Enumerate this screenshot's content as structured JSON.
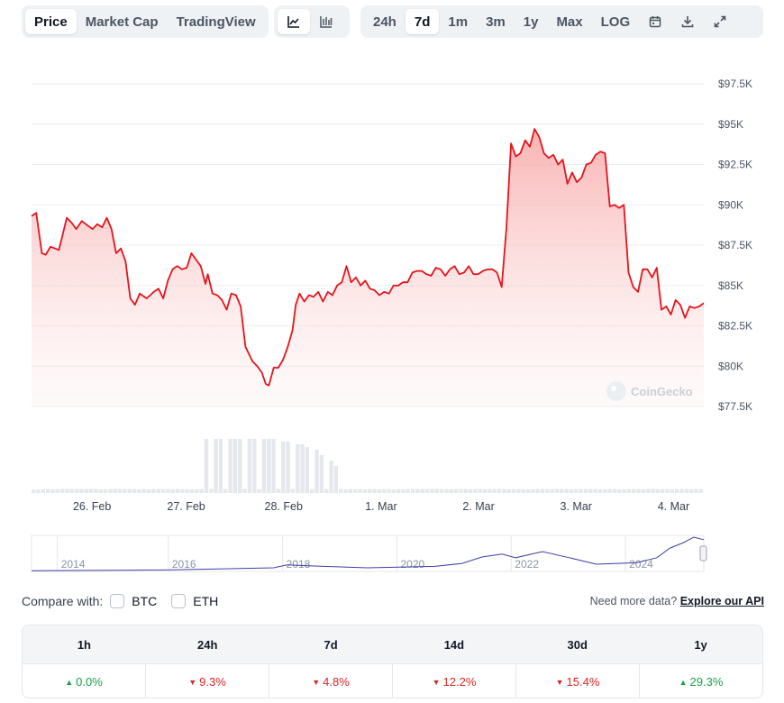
{
  "tabs_view": [
    {
      "label": "Price",
      "active": true
    },
    {
      "label": "Market Cap",
      "active": false
    },
    {
      "label": "TradingView",
      "active": false
    }
  ],
  "chart_style_icons": [
    "line-chart-icon",
    "candlestick-chart-icon"
  ],
  "tabs_range": [
    {
      "label": "24h",
      "active": false
    },
    {
      "label": "7d",
      "active": true
    },
    {
      "label": "1m",
      "active": false
    },
    {
      "label": "3m",
      "active": false
    },
    {
      "label": "1y",
      "active": false
    },
    {
      "label": "Max",
      "active": false
    },
    {
      "label": "LOG",
      "active": false
    }
  ],
  "tool_icons": [
    "calendar-icon",
    "download-icon",
    "expand-icon"
  ],
  "watermark": "CoinGecko",
  "colors": {
    "line": "#e5141c",
    "fill": "#f8b4b4",
    "volume": "#e4e7eb",
    "nav_line": "#3b3fa6",
    "up": "#16a34a",
    "down": "#dc2626"
  },
  "chart_data": {
    "type": "line",
    "y_ticks": [
      "$97.5K",
      "$95K",
      "$92.5K",
      "$90K",
      "$87.5K",
      "$85K",
      "$82.5K",
      "$80K",
      "$77.5K"
    ],
    "y_tick_values": [
      97500,
      95000,
      92500,
      90000,
      87500,
      85000,
      82500,
      80000,
      77500
    ],
    "ylim": [
      77500,
      97500
    ],
    "x_ticks": [
      "26. Feb",
      "27. Feb",
      "28. Feb",
      "1. Mar",
      "2. Mar",
      "3. Mar",
      "4. Mar"
    ],
    "x_tick_positions": [
      0.09,
      0.23,
      0.375,
      0.52,
      0.665,
      0.81,
      0.955
    ],
    "price": [
      [
        0,
        89300
      ],
      [
        0.01,
        89500
      ],
      [
        0.022,
        87000
      ],
      [
        0.03,
        86900
      ],
      [
        0.04,
        87400
      ],
      [
        0.05,
        87300
      ],
      [
        0.058,
        87200
      ],
      [
        0.065,
        88000
      ],
      [
        0.075,
        89200
      ],
      [
        0.085,
        88900
      ],
      [
        0.095,
        88500
      ],
      [
        0.107,
        89000
      ],
      [
        0.12,
        88700
      ],
      [
        0.13,
        88500
      ],
      [
        0.14,
        88800
      ],
      [
        0.15,
        88600
      ],
      [
        0.16,
        89200
      ],
      [
        0.17,
        88500
      ],
      [
        0.18,
        87000
      ],
      [
        0.19,
        87300
      ],
      [
        0.2,
        86500
      ],
      [
        0.21,
        84200
      ],
      [
        0.22,
        83800
      ],
      [
        0.23,
        84500
      ],
      [
        0.245,
        84200
      ],
      [
        0.26,
        84600
      ],
      [
        0.27,
        84800
      ],
      [
        0.28,
        84200
      ],
      [
        0.29,
        85300
      ],
      [
        0.3,
        86000
      ],
      [
        0.31,
        86200
      ],
      [
        0.32,
        86000
      ],
      [
        0.33,
        86100
      ],
      [
        0.34,
        87000
      ],
      [
        0.35,
        86600
      ],
      [
        0.36,
        86200
      ],
      [
        0.37,
        85100
      ],
      [
        0.375,
        85700
      ],
      [
        0.385,
        84500
      ],
      [
        0.395,
        84400
      ],
      [
        0.405,
        84100
      ],
      [
        0.415,
        83500
      ],
      [
        0.425,
        84500
      ],
      [
        0.435,
        84400
      ],
      [
        0.445,
        83700
      ],
      [
        0.455,
        81200
      ],
      [
        0.47,
        80300
      ],
      [
        0.48,
        80000
      ],
      [
        0.49,
        79600
      ],
      [
        0.498,
        78900
      ],
      [
        0.505,
        78800
      ],
      [
        0.515,
        79900
      ],
      [
        0.525,
        79900
      ],
      [
        0.535,
        80400
      ],
      [
        0.545,
        81200
      ],
      [
        0.555,
        82200
      ],
      [
        0.562,
        83800
      ],
      [
        0.57,
        84500
      ],
      [
        0.58,
        84000
      ],
      [
        0.59,
        84400
      ],
      [
        0.6,
        84300
      ],
      [
        0.61,
        84600
      ],
      [
        0.62,
        84000
      ],
      [
        0.63,
        84600
      ],
      [
        0.64,
        84400
      ],
      [
        0.65,
        85000
      ],
      [
        0.66,
        85200
      ],
      [
        0.67,
        86200
      ],
      [
        0.68,
        85200
      ],
      [
        0.69,
        85500
      ],
      [
        0.7,
        85000
      ],
      [
        0.71,
        85300
      ],
      [
        0.72,
        84800
      ],
      [
        0.73,
        84700
      ],
      [
        0.74,
        84400
      ],
      [
        0.75,
        84600
      ],
      [
        0.76,
        84500
      ],
      [
        0.77,
        85000
      ],
      [
        0.78,
        85000
      ],
      [
        0.79,
        85200
      ],
      [
        0.8,
        85200
      ],
      [
        0.81,
        85800
      ],
      [
        0.82,
        85900
      ],
      [
        0.83,
        85900
      ],
      [
        0.84,
        85700
      ],
      [
        0.85,
        85600
      ],
      [
        0.86,
        86100
      ],
      [
        0.87,
        86000
      ],
      [
        0.88,
        85600
      ],
      [
        0.89,
        86000
      ],
      [
        0.9,
        86200
      ],
      [
        0.91,
        85700
      ],
      [
        0.92,
        85800
      ],
      [
        0.93,
        86200
      ],
      [
        0.94,
        85700
      ],
      [
        0.95,
        85700
      ],
      [
        0.96,
        85900
      ],
      [
        0.97,
        86000
      ],
      [
        0.98,
        86000
      ],
      [
        0.99,
        85800
      ],
      [
        1.0,
        84900
      ],
      [
        1.01,
        88500
      ],
      [
        1.02,
        93800
      ],
      [
        1.03,
        93000
      ],
      [
        1.04,
        93200
      ],
      [
        1.05,
        94000
      ],
      [
        1.06,
        93600
      ],
      [
        1.07,
        94700
      ],
      [
        1.08,
        94200
      ],
      [
        1.09,
        93200
      ],
      [
        1.1,
        92900
      ],
      [
        1.11,
        93100
      ],
      [
        1.12,
        92500
      ],
      [
        1.13,
        92800
      ],
      [
        1.14,
        91300
      ],
      [
        1.15,
        92000
      ],
      [
        1.16,
        91400
      ],
      [
        1.17,
        91700
      ],
      [
        1.18,
        92500
      ],
      [
        1.19,
        92600
      ],
      [
        1.2,
        93100
      ],
      [
        1.21,
        93300
      ],
      [
        1.22,
        93200
      ],
      [
        1.23,
        89900
      ],
      [
        1.24,
        90000
      ],
      [
        1.25,
        89800
      ],
      [
        1.26,
        90000
      ],
      [
        1.27,
        85800
      ],
      [
        1.28,
        84900
      ],
      [
        1.29,
        84600
      ],
      [
        1.3,
        86000
      ],
      [
        1.31,
        86000
      ],
      [
        1.32,
        85500
      ],
      [
        1.33,
        86100
      ],
      [
        1.34,
        83500
      ],
      [
        1.35,
        83700
      ],
      [
        1.36,
        83200
      ],
      [
        1.37,
        84100
      ],
      [
        1.38,
        83800
      ],
      [
        1.39,
        83000
      ],
      [
        1.4,
        83700
      ],
      [
        1.41,
        83600
      ],
      [
        1.42,
        83700
      ],
      [
        1.43,
        83900
      ]
    ],
    "volume_levels": [
      0.25,
      0.25,
      0.28,
      0.3,
      0.28,
      0.28,
      0.3,
      0.3,
      0.29,
      0.3,
      0.29,
      0.3,
      0.3,
      0.3,
      0.28,
      0.28,
      0.3,
      0.3,
      0.29,
      0.3,
      0.3,
      0.29,
      0.28,
      0.3,
      0.28,
      0.3,
      0.3,
      0.29,
      0.29,
      0.28,
      0.3,
      0.28,
      0.27,
      0.28,
      0.28,
      0.3,
      0.28,
      0.29,
      0.27,
      0.3,
      0.29,
      0.29,
      0.28,
      0.28,
      0.3,
      0.28,
      0.28,
      0.27,
      0.29,
      0.29,
      0.28,
      0.3,
      0.29,
      0.3,
      0.29,
      0.28,
      0.3,
      0.29,
      0.28,
      0.3,
      0.28,
      0.3,
      0.29,
      0.3,
      0.29,
      0.28,
      0.3,
      0.29,
      0.3,
      0.28,
      0.3,
      0.3,
      0.28,
      0.29,
      0.29,
      0.28,
      0.3,
      0.28,
      0.3,
      0.3,
      0.3,
      0.3,
      0.29,
      0.3,
      0.3,
      0.29,
      0.28,
      0.3,
      0.3,
      0.3,
      0.3,
      0.28,
      0.29,
      0.3,
      0.28,
      0.28,
      0.29,
      0.3,
      0.3,
      0.28,
      0.27,
      0.27,
      0.28,
      0.28,
      0.29,
      0.3,
      0.3,
      0.3,
      0.29,
      0.3,
      0.3,
      0.3,
      0.28,
      0.3,
      0.3,
      0.29,
      0.3,
      0.29,
      0.28,
      0.27,
      0.29,
      0.28,
      0.27,
      0.28,
      0.29,
      0.3,
      0.3,
      0.28,
      0.3,
      0.3,
      0.29,
      0.28,
      0.3,
      0.28,
      0.3,
      0.3,
      0.29,
      0.27,
      0.3,
      0.3
    ],
    "volume_spikes": [
      [
        0.26,
        1.0
      ],
      [
        0.27,
        1.0
      ],
      [
        0.28,
        1.0
      ],
      [
        0.29,
        1.0
      ],
      [
        0.3,
        1.0
      ],
      [
        0.31,
        1.0
      ],
      [
        0.32,
        1.0
      ],
      [
        0.33,
        1.0
      ],
      [
        0.34,
        1.0
      ],
      [
        0.35,
        1.0
      ],
      [
        0.36,
        1.0
      ],
      [
        0.37,
        0.95
      ],
      [
        0.38,
        0.95
      ],
      [
        0.39,
        0.9
      ],
      [
        0.4,
        0.9
      ],
      [
        0.41,
        0.85
      ],
      [
        0.42,
        0.8
      ],
      [
        0.43,
        0.7
      ],
      [
        0.44,
        0.6
      ],
      [
        0.45,
        0.5
      ]
    ],
    "navigator": {
      "x_ticks": [
        "2014",
        "2016",
        "2018",
        "2020",
        "2022",
        "2024"
      ],
      "x_tick_positions": [
        0.06,
        0.225,
        0.395,
        0.565,
        0.735,
        0.905
      ]
    }
  },
  "compare": {
    "label": "Compare with:",
    "options": [
      "BTC",
      "ETH"
    ],
    "api_text": "Need more data?",
    "api_link": "Explore our API"
  },
  "performance": {
    "headers": [
      "1h",
      "24h",
      "7d",
      "14d",
      "30d",
      "1y"
    ],
    "values": [
      {
        "value": "0.0%",
        "dir": "up"
      },
      {
        "value": "9.3%",
        "dir": "down"
      },
      {
        "value": "4.8%",
        "dir": "down"
      },
      {
        "value": "12.2%",
        "dir": "down"
      },
      {
        "value": "15.4%",
        "dir": "down"
      },
      {
        "value": "29.3%",
        "dir": "up"
      }
    ]
  }
}
